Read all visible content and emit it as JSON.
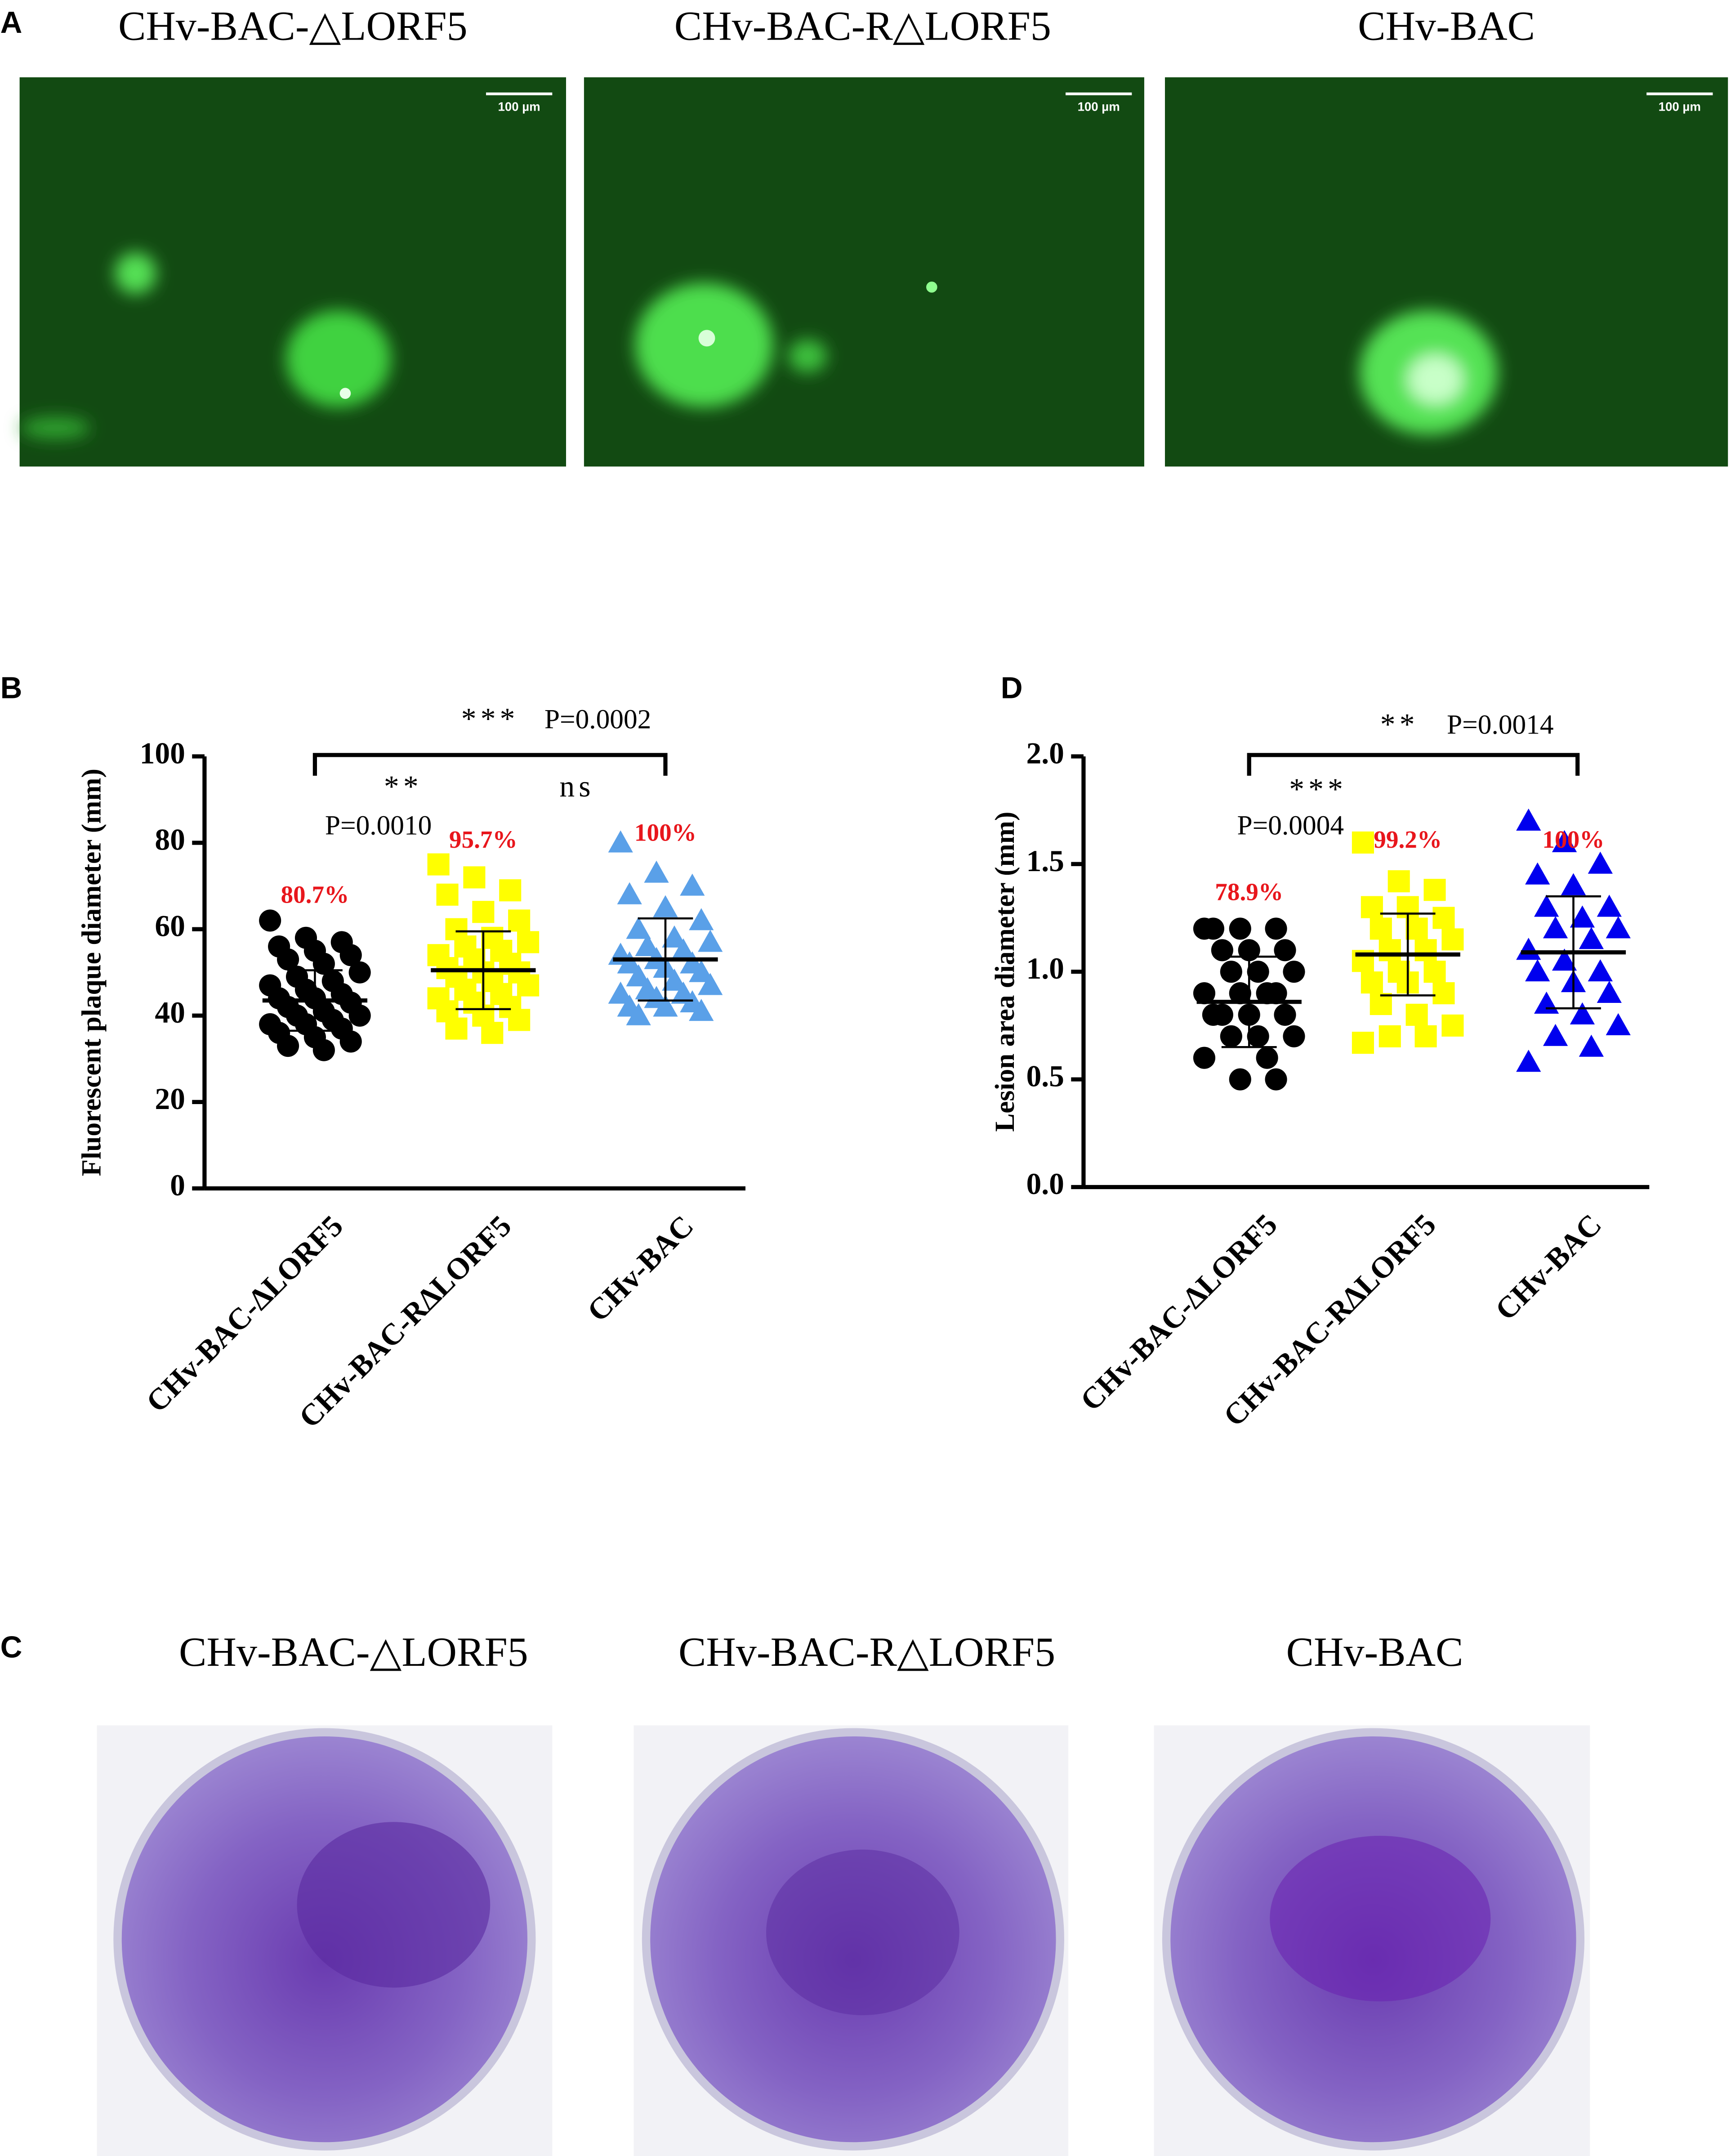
{
  "panel_a": {
    "label": "A",
    "titles": [
      "CHv-BAC-△LORF5",
      "CHv-BAC-R△LORF5",
      "CHv-BAC"
    ],
    "scale_bar": "100 µm"
  },
  "chart_data": [
    {
      "type": "dot",
      "panel_label": "B",
      "y_label": "Fluorescent plaque diameter (mm)",
      "categories": [
        "CHv-BAC-∆LORF5",
        "CHv-BAC-R∆LORF5",
        "CHv-BAC"
      ],
      "groups": [
        {
          "marker": "circle",
          "color": "#000000",
          "percent_label": "80.7%",
          "mean": 43.5,
          "sd": 7,
          "values": [
            62,
            58,
            57,
            56,
            55,
            54,
            53,
            52,
            50,
            49,
            48,
            47,
            46,
            45,
            44,
            44,
            43,
            42,
            41,
            40,
            40,
            39,
            38,
            38,
            37,
            36,
            35,
            34,
            33,
            32
          ]
        },
        {
          "marker": "square",
          "color": "#ffff00",
          "percent_label": "95.7%",
          "mean": 50.5,
          "sd": 9,
          "values": [
            75,
            72,
            69,
            68,
            64,
            62,
            60,
            58,
            57,
            56,
            55,
            54,
            53,
            52,
            51,
            50,
            50,
            49,
            48,
            47,
            46,
            45,
            44,
            43,
            42,
            41,
            40,
            39,
            37,
            36
          ]
        },
        {
          "marker": "triangle",
          "color": "#5aa0e8",
          "percent_label": "100%",
          "mean": 53,
          "sd": 9.5,
          "values": [
            80,
            73,
            70,
            68,
            65,
            62,
            60,
            58,
            57,
            56,
            55,
            54,
            53,
            52,
            52,
            51,
            50,
            49,
            48,
            47,
            46,
            45,
            45,
            44,
            43,
            42,
            42,
            41,
            40
          ]
        }
      ],
      "ylim": [
        0,
        100
      ],
      "yticks": [
        0,
        20,
        40,
        60,
        80,
        100
      ],
      "comparisons": [
        {
          "stars": "***",
          "p": "P=0.0002"
        },
        {
          "stars": "**",
          "p": "P=0.0010"
        },
        {
          "stars": "ns"
        }
      ]
    },
    {
      "type": "dot",
      "panel_label": "D",
      "y_label": "Lesion area diameter (mm)",
      "categories": [
        "CHv-BAC-∆LORF5",
        "CHv-BAC-R∆LORF5",
        "CHv-BAC"
      ],
      "groups": [
        {
          "marker": "circle",
          "color": "#000000",
          "percent_label": "78.9%",
          "mean": 0.86,
          "sd": 0.21,
          "values": [
            1.2,
            1.2,
            1.2,
            1.2,
            1.1,
            1.1,
            1.1,
            1.0,
            1.0,
            1.0,
            0.9,
            0.9,
            0.9,
            0.9,
            0.8,
            0.8,
            0.8,
            0.8,
            0.7,
            0.7,
            0.7,
            0.6,
            0.6,
            0.5,
            0.5
          ]
        },
        {
          "marker": "square",
          "color": "#ffff00",
          "percent_label": "99.2%",
          "mean": 1.08,
          "sd": 0.19,
          "values": [
            1.6,
            1.42,
            1.38,
            1.3,
            1.3,
            1.25,
            1.2,
            1.2,
            1.15,
            1.1,
            1.1,
            1.05,
            1.0,
            1.0,
            0.95,
            0.95,
            0.9,
            0.85,
            0.8,
            0.75,
            0.7,
            0.7,
            0.67
          ]
        },
        {
          "marker": "triangle",
          "color": "#0000ee",
          "percent_label": "100%",
          "mean": 1.09,
          "sd": 0.26,
          "values": [
            1.7,
            1.6,
            1.5,
            1.45,
            1.4,
            1.3,
            1.3,
            1.25,
            1.2,
            1.2,
            1.15,
            1.1,
            1.05,
            1.0,
            1.0,
            0.95,
            0.9,
            0.85,
            0.8,
            0.75,
            0.7,
            0.65,
            0.58
          ]
        }
      ],
      "ylim": [
        0,
        2
      ],
      "yticks": [
        {
          "value": 0,
          "label": "0.0"
        },
        {
          "value": 0.5,
          "label": "0.5"
        },
        {
          "value": 1,
          "label": "1.0"
        },
        {
          "value": 1.5,
          "label": "1.5"
        },
        {
          "value": 2,
          "label": "2.0"
        }
      ],
      "comparisons": [
        {
          "stars": "**",
          "p": "P=0.0014"
        },
        {
          "stars": "***",
          "p": "P=0.0004"
        }
      ]
    }
  ],
  "panel_c": {
    "label": "C",
    "titles": [
      "CHv-BAC-△LORF5",
      "CHv-BAC-R△LORF5",
      "CHv-BAC"
    ]
  }
}
